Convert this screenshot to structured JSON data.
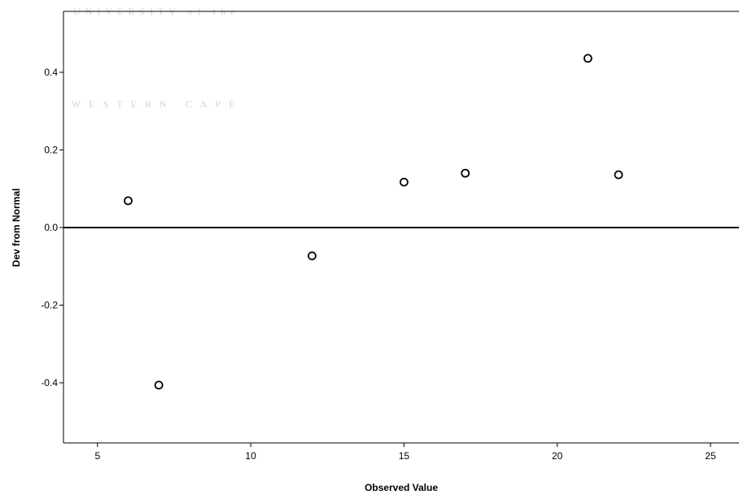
{
  "chart_data": {
    "type": "scatter",
    "watermark": [
      "UNIVERSITY of the",
      "WESTERN CAPE"
    ],
    "xlabel": "Observed Value",
    "ylabel": "Dev from Normal",
    "x": [
      6,
      7,
      12,
      15,
      17,
      21,
      22
    ],
    "values": [
      0.069,
      -0.406,
      -0.073,
      0.117,
      0.14,
      0.436,
      0.136
    ],
    "color": "#000000",
    "xlim": [
      3.89,
      25.93
    ],
    "xticks": [
      5,
      10,
      15,
      20,
      25
    ],
    "ylim": [
      -0.555,
      0.557
    ],
    "yticks": [
      -0.4,
      -0.2,
      {
        "value": 0,
        "label": "0.0"
      },
      0.2,
      0.4
    ],
    "reference_line": 0
  }
}
